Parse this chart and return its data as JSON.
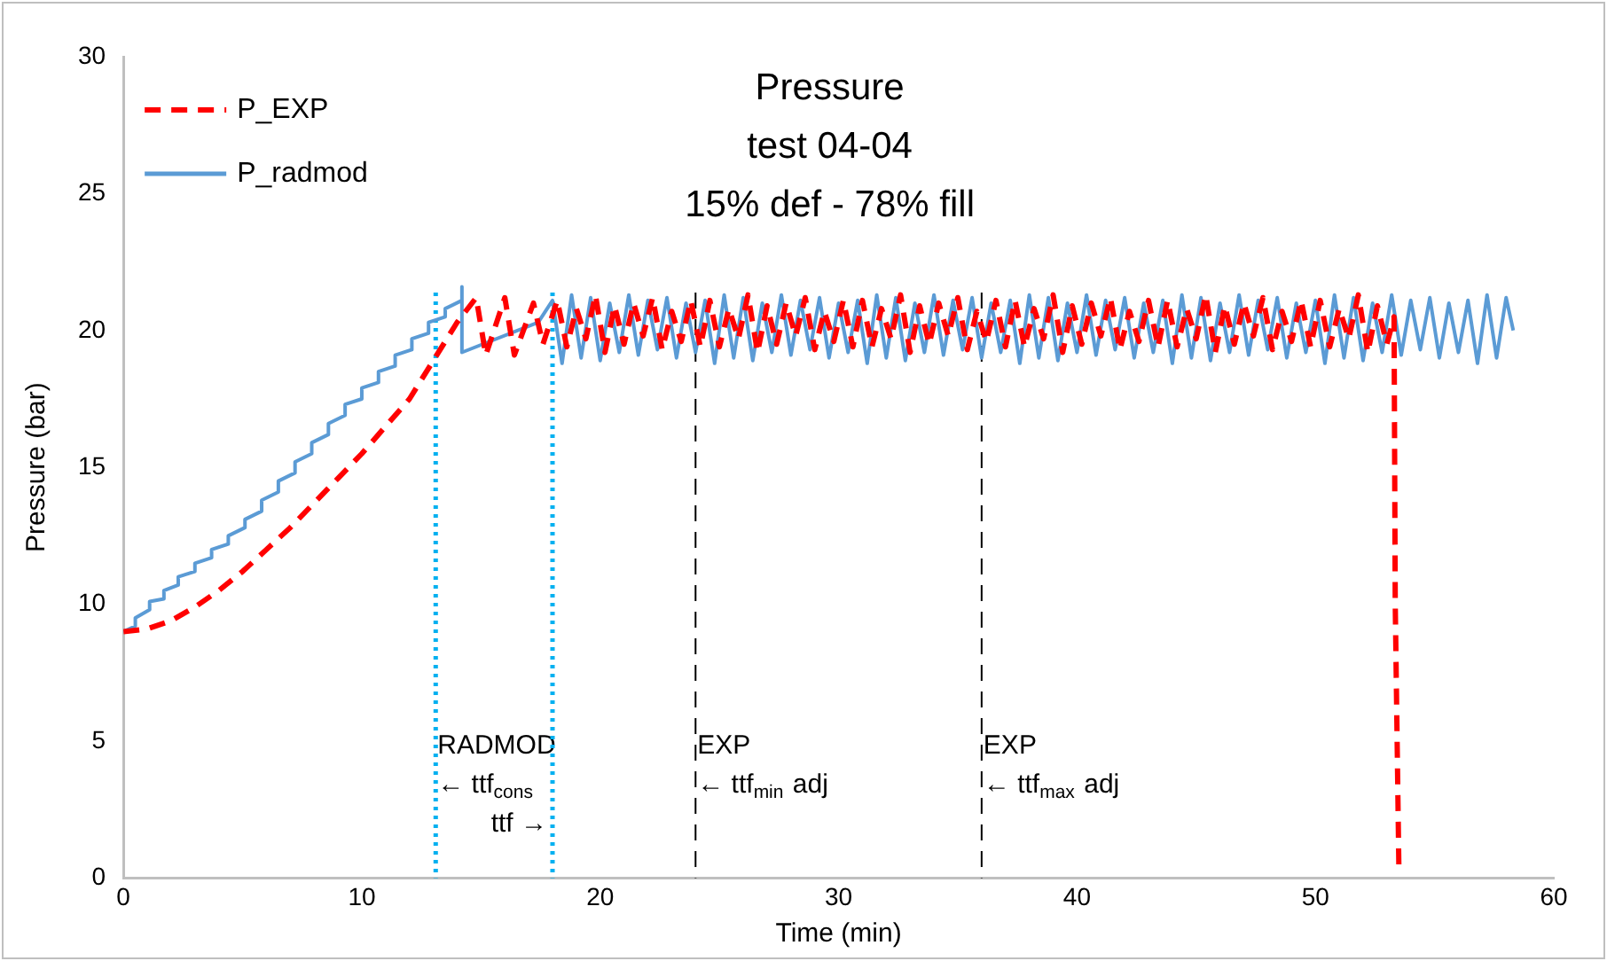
{
  "chart_data": {
    "type": "line",
    "title": "Pressure\ntest 04-04\n15% def - 78% fill",
    "xlabel": "Time (min)",
    "ylabel": "Pressure (bar)",
    "xlim": [
      0,
      60
    ],
    "xticks": [
      0,
      10,
      20,
      30,
      40,
      50,
      60
    ],
    "ylim": [
      0,
      30
    ],
    "yticks": [
      0,
      5,
      10,
      15,
      20,
      25,
      30
    ],
    "grid": false,
    "legend": "top left",
    "marker": "none",
    "series": [
      {
        "name": "P_EXP",
        "color": "#ff0000",
        "line_style": "dashed",
        "x": [
          0,
          1,
          2,
          3,
          4,
          5,
          6,
          7,
          8,
          9,
          10,
          11,
          12,
          13,
          13.5,
          14,
          14.8,
          15.2,
          16,
          16.4,
          17.2,
          17.6,
          18.2,
          18.6,
          19,
          19.4,
          19.8,
          20.2,
          20.6,
          21,
          21.4,
          21.8,
          22.2,
          22.6,
          23,
          23.4,
          23.8,
          24.2,
          24.6,
          25,
          25.4,
          25.8,
          26.2,
          26.6,
          27,
          27.4,
          27.8,
          28.2,
          28.6,
          29,
          29.4,
          29.8,
          30.2,
          30.6,
          31,
          31.4,
          31.8,
          32.2,
          32.6,
          33,
          33.4,
          33.8,
          34.2,
          34.6,
          35,
          35.4,
          35.8,
          36.2,
          36.6,
          37,
          37.4,
          37.8,
          38.2,
          38.6,
          39,
          39.4,
          39.8,
          40.2,
          40.6,
          41,
          41.4,
          41.8,
          42.2,
          42.6,
          43,
          43.4,
          43.8,
          44.2,
          44.6,
          45,
          45.4,
          45.8,
          46.2,
          46.6,
          47,
          47.4,
          47.8,
          48.2,
          48.6,
          49,
          49.4,
          49.8,
          50.2,
          50.6,
          51,
          51.4,
          51.8,
          52.2,
          52.6,
          53,
          53.3,
          53.35,
          53.5
        ],
        "values": [
          9,
          9.1,
          9.4,
          9.9,
          10.5,
          11.2,
          12,
          12.8,
          13.7,
          14.6,
          15.5,
          16.5,
          17.5,
          18.9,
          19.6,
          20.3,
          21.2,
          19.1,
          21.2,
          19.1,
          21,
          19.5,
          21.1,
          19.4,
          20.8,
          19.7,
          21.3,
          19.2,
          20.9,
          19.5,
          21,
          19.8,
          21.2,
          19.3,
          20.7,
          19.6,
          21.1,
          19.4,
          21.1,
          19.4,
          20.8,
          19.7,
          21.3,
          19.2,
          20.9,
          19.5,
          21,
          19.8,
          21.2,
          19.3,
          20.7,
          19.6,
          21.1,
          19.4,
          21.1,
          19.4,
          20.8,
          19.7,
          21.3,
          19.2,
          20.9,
          19.5,
          21,
          19.8,
          21.2,
          19.3,
          20.7,
          19.6,
          21.1,
          19.4,
          21.1,
          19.4,
          20.8,
          19.7,
          21.3,
          19.2,
          20.9,
          19.5,
          21,
          19.8,
          21.2,
          19.3,
          20.7,
          19.6,
          21.1,
          19.4,
          21.1,
          19.4,
          20.8,
          19.7,
          21.3,
          19.2,
          20.9,
          19.5,
          21,
          19.8,
          21.2,
          19.3,
          20.7,
          19.6,
          21.1,
          19.4,
          21.1,
          19.4,
          20.8,
          19.7,
          21.3,
          19.2,
          20.9,
          19.5,
          20.5,
          10,
          0.5
        ]
      },
      {
        "name": "P_radmod",
        "color": "#5b9bd5",
        "line_style": "solid",
        "x": [
          0,
          0.5,
          0.5,
          1.1,
          1.1,
          1.7,
          1.7,
          2.3,
          2.3,
          3,
          3,
          3.7,
          3.7,
          4.4,
          4.4,
          5.1,
          5.1,
          5.8,
          5.8,
          6.5,
          6.5,
          7.2,
          7.2,
          7.9,
          7.9,
          8.6,
          8.6,
          9.3,
          9.3,
          10,
          10,
          10.7,
          10.7,
          11.4,
          11.4,
          12.1,
          12.1,
          12.8,
          12.8,
          13.5,
          13.5,
          14.2,
          14.2,
          14.2,
          17.4,
          18,
          18.4,
          18.8,
          19.2,
          19.6,
          20,
          20.4,
          20.8,
          21.2,
          21.6,
          22,
          22.4,
          22.8,
          23.2,
          23.6,
          24,
          24.4,
          24.8,
          25.2,
          25.6,
          26,
          26.4,
          26.8,
          27.2,
          27.6,
          28,
          28.4,
          28.8,
          29.2,
          29.6,
          30,
          30.4,
          30.8,
          31.2,
          31.6,
          32,
          32.4,
          32.8,
          33.2,
          33.6,
          34,
          34.4,
          34.8,
          35.2,
          35.6,
          36,
          36.4,
          36.8,
          37.2,
          37.6,
          38,
          38.4,
          38.8,
          39.2,
          39.6,
          40,
          40.4,
          40.8,
          41.2,
          41.6,
          42,
          42.4,
          42.8,
          43.2,
          43.6,
          44,
          44.4,
          44.8,
          45.2,
          45.6,
          46,
          46.4,
          46.8,
          47.2,
          47.6,
          48,
          48.4,
          48.8,
          49.2,
          49.6,
          50,
          50.4,
          50.8,
          51.2,
          51.6,
          52,
          52.4,
          52.8,
          53.2,
          53.6,
          54,
          54.4,
          54.8,
          55.2,
          55.6,
          56,
          56.4,
          56.8,
          57.2,
          57.6,
          58,
          58.3
        ],
        "values": [
          9,
          9.2,
          9.5,
          9.8,
          10.1,
          10.2,
          10.5,
          10.7,
          11,
          11.2,
          11.5,
          11.7,
          12,
          12.2,
          12.5,
          12.8,
          13.1,
          13.4,
          13.8,
          14.1,
          14.5,
          14.8,
          15.2,
          15.5,
          15.9,
          16.2,
          16.6,
          16.9,
          17.3,
          17.5,
          17.9,
          18.1,
          18.5,
          18.7,
          19.1,
          19.3,
          19.7,
          19.9,
          20.3,
          20.5,
          20.8,
          21.1,
          21.6,
          19.2,
          20.3,
          21.1,
          18.8,
          21.3,
          19,
          21.2,
          18.9,
          21,
          19.2,
          21.3,
          19.1,
          21.1,
          19.3,
          21.2,
          19,
          21,
          19.2,
          21.1,
          18.8,
          21.3,
          19,
          21.2,
          18.9,
          21,
          19.2,
          21.3,
          19.1,
          21.1,
          19.3,
          21.2,
          19,
          21,
          19.2,
          21.1,
          18.8,
          21.3,
          19,
          21.2,
          18.9,
          21,
          19.2,
          21.3,
          19.1,
          21.1,
          19.3,
          21.2,
          19,
          21,
          19.2,
          21.1,
          18.8,
          21.3,
          19,
          21.2,
          18.9,
          21,
          19.2,
          21.3,
          19.1,
          21.1,
          19.3,
          21.2,
          19,
          21,
          19.2,
          21.1,
          18.8,
          21.3,
          19,
          21.2,
          18.9,
          21,
          19.2,
          21.3,
          19.1,
          21.1,
          19.3,
          21.2,
          19,
          21,
          19.2,
          21.1,
          18.8,
          21.3,
          19,
          21.2,
          18.9,
          21,
          19.2,
          21.3,
          19.1,
          21.1,
          19.3,
          21.2,
          19,
          21,
          19.2,
          21.1,
          18.8,
          21.3,
          19,
          21.2,
          20
        ]
      }
    ],
    "ref_lines": [
      {
        "axis": "x",
        "value": 13.1,
        "color": "#00b0f0",
        "line_style": "dotted",
        "label": "RADMOD\n← ttf$_{cons}$"
      },
      {
        "axis": "x",
        "value": 18,
        "color": "#00b0f0",
        "line_style": "dotted",
        "label": "ttf →"
      },
      {
        "axis": "x",
        "value": 24,
        "color": "#000000",
        "line_style": "dashed",
        "label": "EXP\n← ttf$_{min}$ adj"
      },
      {
        "axis": "x",
        "value": 36,
        "color": "#000000",
        "line_style": "dashed",
        "label": "EXP\n← ttf$_{max}$ adj"
      }
    ]
  }
}
